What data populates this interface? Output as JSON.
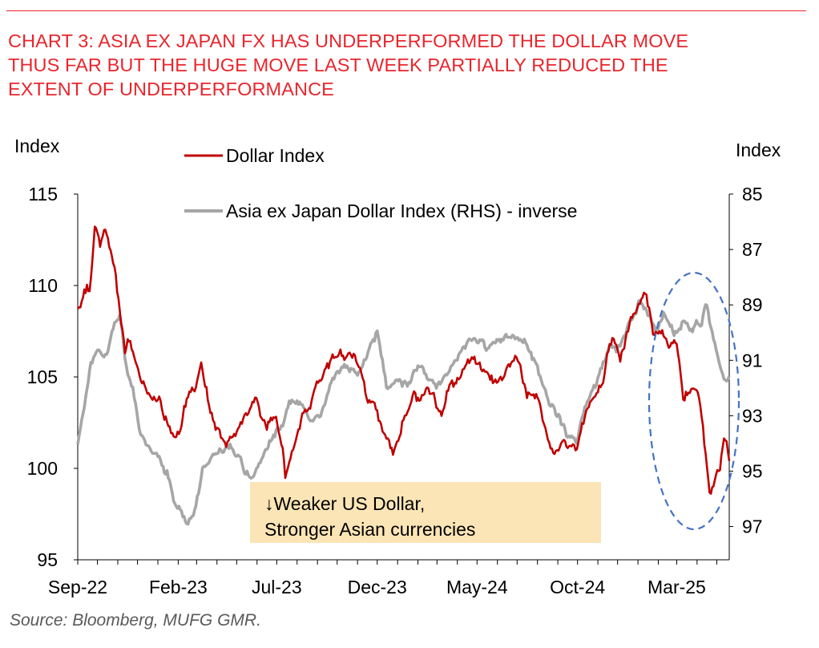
{
  "title": "CHART 3: ASIA EX JAPAN FX HAS UNDERPERFORMED THE DOLLAR MOVE\nTHUS FAR BUT THE HUGE MOVE LAST WEEK PARTIALLY REDUCED THE\nEXTENT OF UNDERPERFORMANCE",
  "source": "Source: Bloomberg, MUFG GMR.",
  "colors": {
    "title": "#e8262d",
    "dollar": "#c00000",
    "asia": "#a6a6a6",
    "note_bg": "#fbe5b6",
    "ellipse": "#4472c4"
  },
  "chart_data": {
    "type": "line",
    "y_left": {
      "label": "Index",
      "ticks": [
        "95",
        "100",
        "105",
        "110",
        "115"
      ],
      "range": [
        95,
        115
      ]
    },
    "y_right": {
      "label": "Index",
      "ticks": [
        "85",
        "87",
        "89",
        "91",
        "93",
        "95",
        "97"
      ],
      "range": [
        85,
        98.2
      ],
      "inverted": true
    },
    "x_ticks": [
      "Sep-22",
      "Feb-23",
      "Jul-23",
      "Dec-23",
      "May-24",
      "Oct-24",
      "Mar-25"
    ],
    "x_range": [
      "2022-09-01",
      "2025-05-20"
    ],
    "grid": false,
    "legend": {
      "position": "top",
      "entries": [
        "Dollar Index",
        "Asia ex Japan Dollar Index (RHS) - inverse"
      ]
    },
    "note": [
      "↓Weaker US Dollar,",
      "Stronger Asian currencies"
    ],
    "series": [
      {
        "name": "Dollar Index",
        "axis": "left",
        "x": [
          "2022-09-01",
          "2022-09-10",
          "2022-09-20",
          "2022-09-28",
          "2022-10-05",
          "2022-10-12",
          "2022-10-20",
          "2022-10-28",
          "2022-11-05",
          "2022-11-12",
          "2022-11-20",
          "2022-11-28",
          "2022-12-08",
          "2022-12-20",
          "2023-01-03",
          "2023-01-15",
          "2023-01-25",
          "2023-02-01",
          "2023-02-10",
          "2023-02-20",
          "2023-03-01",
          "2023-03-08",
          "2023-03-20",
          "2023-04-01",
          "2023-04-15",
          "2023-05-01",
          "2023-05-15",
          "2023-05-31",
          "2023-06-15",
          "2023-06-30",
          "2023-07-10",
          "2023-07-14",
          "2023-07-25",
          "2023-08-10",
          "2023-08-25",
          "2023-09-10",
          "2023-09-25",
          "2023-10-05",
          "2023-10-20",
          "2023-11-01",
          "2023-11-15",
          "2023-11-30",
          "2023-12-10",
          "2023-12-27",
          "2024-01-10",
          "2024-01-25",
          "2024-02-10",
          "2024-02-25",
          "2024-03-08",
          "2024-03-20",
          "2024-04-01",
          "2024-04-16",
          "2024-04-30",
          "2024-05-15",
          "2024-05-31",
          "2024-06-15",
          "2024-06-30",
          "2024-07-15",
          "2024-07-31",
          "2024-08-10",
          "2024-08-26",
          "2024-09-10",
          "2024-09-27",
          "2024-10-08",
          "2024-10-20",
          "2024-11-01",
          "2024-11-10",
          "2024-11-22",
          "2024-12-05",
          "2024-12-20",
          "2025-01-02",
          "2025-01-13",
          "2025-01-25",
          "2025-02-05",
          "2025-02-18",
          "2025-02-28",
          "2025-03-05",
          "2025-03-12",
          "2025-03-25",
          "2025-04-02",
          "2025-04-10",
          "2025-04-21",
          "2025-04-30",
          "2025-05-06",
          "2025-05-12",
          "2025-05-20"
        ],
        "values": [
          108.8,
          109.6,
          110.0,
          113.5,
          112.0,
          113.0,
          112.0,
          110.8,
          108.3,
          106.5,
          107.0,
          105.6,
          104.6,
          104.0,
          104.0,
          102.5,
          101.6,
          102.0,
          103.5,
          104.2,
          104.5,
          105.5,
          103.2,
          102.1,
          101.6,
          102.1,
          102.8,
          103.6,
          102.2,
          102.9,
          101.3,
          99.7,
          101.2,
          102.9,
          104.0,
          105.2,
          106.2,
          106.3,
          106.4,
          106.0,
          104.0,
          103.2,
          102.0,
          101.0,
          102.6,
          103.6,
          104.1,
          104.3,
          103.0,
          104.5,
          104.9,
          106.2,
          106.1,
          105.0,
          104.6,
          105.4,
          105.9,
          104.2,
          104.0,
          102.3,
          100.6,
          101.2,
          100.8,
          102.3,
          103.4,
          104.3,
          105.0,
          107.0,
          106.2,
          108.0,
          108.9,
          109.7,
          107.6,
          107.6,
          106.9,
          106.8,
          105.7,
          103.8,
          104.4,
          104.0,
          102.0,
          98.3,
          99.4,
          99.8,
          101.7,
          100.5
        ]
      },
      {
        "name": "Asia ex Japan Dollar Index (RHS) - inverse",
        "axis": "right",
        "x": [
          "2022-09-01",
          "2022-09-10",
          "2022-09-20",
          "2022-10-01",
          "2022-10-12",
          "2022-10-25",
          "2022-11-05",
          "2022-11-15",
          "2022-11-25",
          "2022-12-05",
          "2022-12-15",
          "2023-01-01",
          "2023-01-15",
          "2023-01-25",
          "2023-02-05",
          "2023-02-15",
          "2023-02-25",
          "2023-03-10",
          "2023-03-25",
          "2023-04-10",
          "2023-04-25",
          "2023-05-10",
          "2023-05-25",
          "2023-06-10",
          "2023-06-25",
          "2023-07-10",
          "2023-07-20",
          "2023-08-05",
          "2023-08-20",
          "2023-09-05",
          "2023-09-20",
          "2023-10-01",
          "2023-10-15",
          "2023-11-01",
          "2023-11-15",
          "2023-12-01",
          "2023-12-15",
          "2024-01-01",
          "2024-01-15",
          "2024-02-01",
          "2024-02-15",
          "2024-03-01",
          "2024-03-15",
          "2024-04-01",
          "2024-04-15",
          "2024-05-01",
          "2024-05-15",
          "2024-06-01",
          "2024-06-15",
          "2024-07-01",
          "2024-07-15",
          "2024-08-01",
          "2024-08-15",
          "2024-09-01",
          "2024-09-15",
          "2024-09-30",
          "2024-10-10",
          "2024-10-25",
          "2024-11-05",
          "2024-11-20",
          "2024-12-05",
          "2024-12-20",
          "2025-01-05",
          "2025-01-15",
          "2025-01-30",
          "2025-02-10",
          "2025-02-25",
          "2025-03-10",
          "2025-03-25",
          "2025-04-01",
          "2025-04-08",
          "2025-04-15",
          "2025-04-25",
          "2025-05-02",
          "2025-05-06",
          "2025-05-12",
          "2025-05-20"
        ],
        "values": [
          94.0,
          92.8,
          91.0,
          90.6,
          91.0,
          89.8,
          89.2,
          91.3,
          92.1,
          93.6,
          94.1,
          94.4,
          95.0,
          96.1,
          96.5,
          96.9,
          96.6,
          94.8,
          94.5,
          94.2,
          94.1,
          94.8,
          95.3,
          94.3,
          93.8,
          93.2,
          92.3,
          92.5,
          93.4,
          93.0,
          92.1,
          91.4,
          91.2,
          91.6,
          90.7,
          90.0,
          91.9,
          91.7,
          91.9,
          91.2,
          91.6,
          92.0,
          91.5,
          90.9,
          90.4,
          90.3,
          90.6,
          90.4,
          90.1,
          90.2,
          90.4,
          91.2,
          92.3,
          92.9,
          93.8,
          93.9,
          93.0,
          92.0,
          91.4,
          90.5,
          90.6,
          89.6,
          88.9,
          89.2,
          89.9,
          89.3,
          90.1,
          89.7,
          90.0,
          89.6,
          89.8,
          88.8,
          90.1,
          90.6,
          91.0,
          91.5,
          91.5
        ]
      }
    ]
  }
}
